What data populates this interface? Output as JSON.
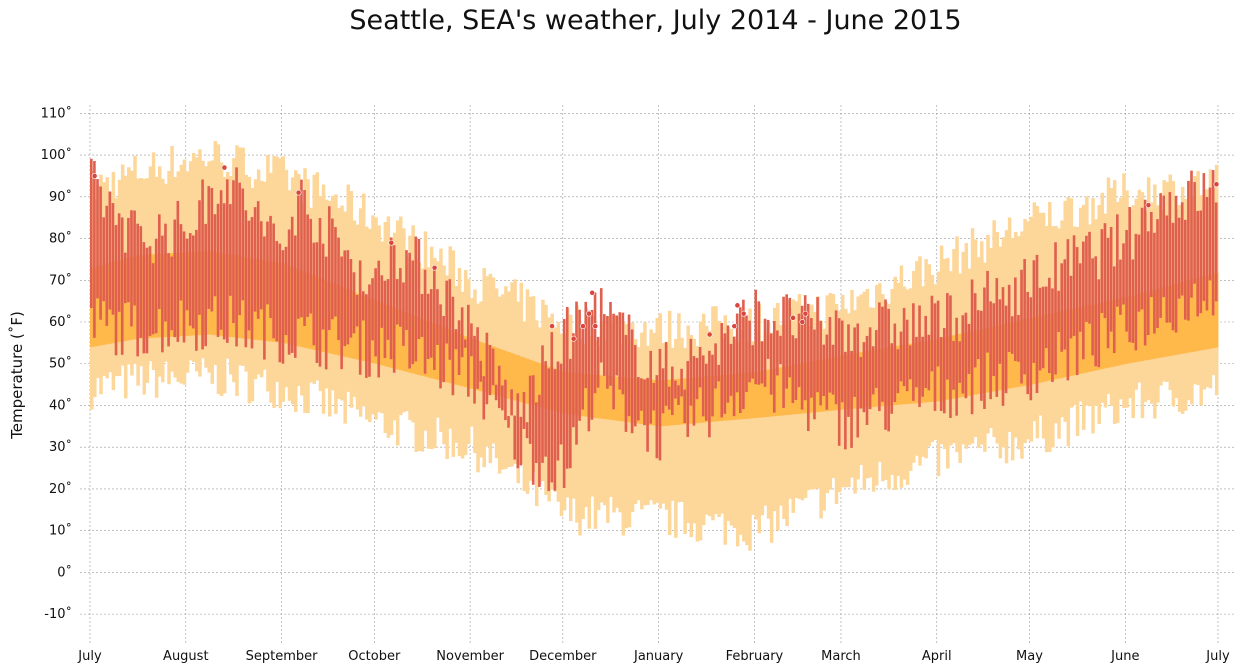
{
  "chart_data": {
    "type": "bar",
    "title": "Seattle, SEA's weather, July 2014 - June 2015",
    "ylabel": "Temperature (˚F)",
    "xlabel": "",
    "ylim": [
      -15,
      112
    ],
    "grid": true,
    "x_range": [
      "2014-07-01",
      "2015-07-01"
    ],
    "x_tick_labels": [
      "July",
      "August",
      "September",
      "October",
      "November",
      "December",
      "January",
      "February",
      "March",
      "April",
      "May",
      "June",
      "July"
    ],
    "x_tick_dates": [
      "2014-07-01",
      "2014-08-01",
      "2014-09-01",
      "2014-10-01",
      "2014-11-01",
      "2014-12-01",
      "2015-01-01",
      "2015-02-01",
      "2015-03-01",
      "2015-04-01",
      "2015-05-01",
      "2015-06-01",
      "2015-07-01"
    ],
    "y_ticks": [
      -10,
      0,
      10,
      20,
      30,
      40,
      50,
      60,
      70,
      80,
      90,
      100,
      110
    ],
    "y_tick_labels": [
      "-10˚",
      "0˚",
      "10˚",
      "20˚",
      "30˚",
      "40˚",
      "50˚",
      "60˚",
      "70˚",
      "80˚",
      "90˚",
      "100˚",
      "110˚"
    ],
    "colors": {
      "record_range": "#fdd69a",
      "average_range": "#ffb84a",
      "actual_range": "#e0604f",
      "record_marker": "#d9453f",
      "grid": "#999999"
    },
    "series": [
      {
        "role": "record_range",
        "segments": [
          {
            "start": "2014-07-01",
            "end": "2014-07-16",
            "low_start": 44,
            "low_end": 46,
            "high_start": 92,
            "high_end": 96
          },
          {
            "start": "2014-07-16",
            "end": "2014-08-08",
            "low_start": 46,
            "low_end": 47,
            "high_start": 96,
            "high_end": 100
          },
          {
            "start": "2014-08-08",
            "end": "2014-09-01",
            "low_start": 47,
            "low_end": 44,
            "high_start": 100,
            "high_end": 95
          },
          {
            "start": "2014-09-01",
            "end": "2014-10-01",
            "low_start": 44,
            "low_end": 36,
            "high_start": 95,
            "high_end": 85
          },
          {
            "start": "2014-10-01",
            "end": "2014-11-01",
            "low_start": 36,
            "low_end": 30,
            "high_start": 85,
            "high_end": 70
          },
          {
            "start": "2014-11-01",
            "end": "2014-12-01",
            "low_start": 30,
            "low_end": 14,
            "high_start": 70,
            "high_end": 60
          },
          {
            "start": "2014-12-01",
            "end": "2015-01-01",
            "low_start": 14,
            "low_end": 13,
            "high_start": 60,
            "high_end": 58
          },
          {
            "start": "2015-01-01",
            "end": "2015-02-01",
            "low_start": 13,
            "low_end": 10,
            "high_start": 58,
            "high_end": 60
          },
          {
            "start": "2015-02-01",
            "end": "2015-03-01",
            "low_start": 10,
            "low_end": 20,
            "high_start": 60,
            "high_end": 64
          },
          {
            "start": "2015-03-01",
            "end": "2015-04-01",
            "low_start": 20,
            "low_end": 27,
            "high_start": 64,
            "high_end": 74
          },
          {
            "start": "2015-04-01",
            "end": "2015-05-01",
            "low_start": 27,
            "low_end": 32,
            "high_start": 74,
            "high_end": 84
          },
          {
            "start": "2015-05-01",
            "end": "2015-06-01",
            "low_start": 32,
            "low_end": 40,
            "high_start": 84,
            "high_end": 91
          },
          {
            "start": "2015-06-01",
            "end": "2015-07-01",
            "low_start": 40,
            "low_end": 44,
            "high_start": 91,
            "high_end": 93
          }
        ]
      },
      {
        "role": "average_range",
        "segments": [
          {
            "start": "2014-07-01",
            "end": "2014-07-16",
            "low_start": 54,
            "low_end": 56,
            "high_start": 73,
            "high_end": 76
          },
          {
            "start": "2014-07-16",
            "end": "2014-08-08",
            "low_start": 56,
            "low_end": 57,
            "high_start": 76,
            "high_end": 77
          },
          {
            "start": "2014-08-08",
            "end": "2014-09-01",
            "low_start": 57,
            "low_end": 55,
            "high_start": 77,
            "high_end": 74
          },
          {
            "start": "2014-09-01",
            "end": "2014-10-01",
            "low_start": 55,
            "low_end": 50,
            "high_start": 74,
            "high_end": 65
          },
          {
            "start": "2014-10-01",
            "end": "2014-11-01",
            "low_start": 50,
            "low_end": 44,
            "high_start": 65,
            "high_end": 56
          },
          {
            "start": "2014-11-01",
            "end": "2014-12-01",
            "low_start": 44,
            "low_end": 38,
            "high_start": 56,
            "high_end": 48
          },
          {
            "start": "2014-12-01",
            "end": "2015-01-01",
            "low_start": 38,
            "low_end": 35,
            "high_start": 48,
            "high_end": 46
          },
          {
            "start": "2015-01-01",
            "end": "2015-02-01",
            "low_start": 35,
            "low_end": 37,
            "high_start": 46,
            "high_end": 48
          },
          {
            "start": "2015-02-01",
            "end": "2015-03-01",
            "low_start": 37,
            "low_end": 39,
            "high_start": 48,
            "high_end": 52
          },
          {
            "start": "2015-03-01",
            "end": "2015-04-01",
            "low_start": 39,
            "low_end": 41,
            "high_start": 52,
            "high_end": 56
          },
          {
            "start": "2015-04-01",
            "end": "2015-05-01",
            "low_start": 41,
            "low_end": 45,
            "high_start": 56,
            "high_end": 61
          },
          {
            "start": "2015-05-01",
            "end": "2015-06-01",
            "low_start": 45,
            "low_end": 50,
            "high_start": 61,
            "high_end": 66
          },
          {
            "start": "2015-06-01",
            "end": "2015-07-01",
            "low_start": 50,
            "low_end": 54,
            "high_start": 66,
            "high_end": 72
          }
        ]
      },
      {
        "role": "actual_range",
        "segments": [
          {
            "start": "2014-07-01",
            "end": "2014-07-16",
            "low_start": 60,
            "low_end": 58,
            "high_start": 93,
            "high_end": 80
          },
          {
            "start": "2014-07-16",
            "end": "2014-08-01",
            "low_start": 58,
            "low_end": 60,
            "high_start": 80,
            "high_end": 83
          },
          {
            "start": "2014-08-01",
            "end": "2014-08-13",
            "low_start": 60,
            "low_end": 60,
            "high_start": 83,
            "high_end": 95
          },
          {
            "start": "2014-08-13",
            "end": "2014-09-01",
            "low_start": 60,
            "low_end": 57,
            "high_start": 95,
            "high_end": 77
          },
          {
            "start": "2014-09-01",
            "end": "2014-09-06",
            "low_start": 57,
            "low_end": 57,
            "high_start": 77,
            "high_end": 90
          },
          {
            "start": "2014-09-06",
            "end": "2014-10-01",
            "low_start": 57,
            "low_end": 53,
            "high_start": 90,
            "high_end": 68
          },
          {
            "start": "2014-10-01",
            "end": "2014-10-06",
            "low_start": 53,
            "low_end": 54,
            "high_start": 68,
            "high_end": 78
          },
          {
            "start": "2014-10-06",
            "end": "2014-10-20",
            "low_start": 54,
            "low_end": 50,
            "high_start": 78,
            "high_end": 71
          },
          {
            "start": "2014-10-20",
            "end": "2014-11-01",
            "low_start": 50,
            "low_end": 47,
            "high_start": 71,
            "high_end": 58
          },
          {
            "start": "2014-11-01",
            "end": "2014-11-16",
            "low_start": 47,
            "low_end": 30,
            "high_start": 58,
            "high_end": 38
          },
          {
            "start": "2014-11-16",
            "end": "2014-12-01",
            "low_start": 30,
            "low_end": 24,
            "high_start": 38,
            "high_end": 56
          },
          {
            "start": "2014-12-01",
            "end": "2014-12-11",
            "low_start": 24,
            "low_end": 45,
            "high_start": 56,
            "high_end": 64
          },
          {
            "start": "2014-12-11",
            "end": "2015-01-01",
            "low_start": 45,
            "low_end": 33,
            "high_start": 64,
            "high_end": 48
          },
          {
            "start": "2015-01-01",
            "end": "2015-01-15",
            "low_start": 33,
            "low_end": 38,
            "high_start": 48,
            "high_end": 52
          },
          {
            "start": "2015-01-15",
            "end": "2015-02-01",
            "low_start": 38,
            "low_end": 46,
            "high_start": 52,
            "high_end": 62
          },
          {
            "start": "2015-02-01",
            "end": "2015-03-01",
            "low_start": 46,
            "low_end": 36,
            "high_start": 62,
            "high_end": 58
          },
          {
            "start": "2015-03-01",
            "end": "2015-04-01",
            "low_start": 36,
            "low_end": 43,
            "high_start": 58,
            "high_end": 60
          },
          {
            "start": "2015-04-01",
            "end": "2015-05-01",
            "low_start": 43,
            "low_end": 48,
            "high_start": 60,
            "high_end": 70
          },
          {
            "start": "2015-05-01",
            "end": "2015-06-01",
            "low_start": 48,
            "low_end": 58,
            "high_start": 70,
            "high_end": 80
          },
          {
            "start": "2015-06-01",
            "end": "2015-06-10",
            "low_start": 58,
            "low_end": 62,
            "high_start": 80,
            "high_end": 88
          },
          {
            "start": "2015-06-10",
            "end": "2015-07-01",
            "low_start": 62,
            "low_end": 68,
            "high_start": 88,
            "high_end": 92
          }
        ]
      },
      {
        "role": "record_marker",
        "points": [
          {
            "date": "2014-07-02",
            "value": 95
          },
          {
            "date": "2014-08-13",
            "value": 97
          },
          {
            "date": "2014-09-06",
            "value": 91
          },
          {
            "date": "2014-10-06",
            "value": 79
          },
          {
            "date": "2014-10-20",
            "value": 73
          },
          {
            "date": "2014-11-27",
            "value": 59
          },
          {
            "date": "2014-12-04",
            "value": 56
          },
          {
            "date": "2014-12-07",
            "value": 59
          },
          {
            "date": "2014-12-09",
            "value": 62
          },
          {
            "date": "2014-12-10",
            "value": 67
          },
          {
            "date": "2014-12-11",
            "value": 59
          },
          {
            "date": "2015-01-17",
            "value": 57
          },
          {
            "date": "2015-01-25",
            "value": 59
          },
          {
            "date": "2015-01-26",
            "value": 64
          },
          {
            "date": "2015-01-28",
            "value": 62
          },
          {
            "date": "2015-02-13",
            "value": 61
          },
          {
            "date": "2015-02-16",
            "value": 60
          },
          {
            "date": "2015-02-17",
            "value": 62
          },
          {
            "date": "2015-06-08",
            "value": 88
          },
          {
            "date": "2015-06-30",
            "value": 93
          }
        ]
      }
    ]
  }
}
